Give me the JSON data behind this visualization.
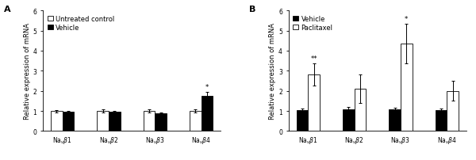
{
  "panel_A": {
    "title": "A",
    "ylabel": "Relative expression of mRNA",
    "ylim": [
      0,
      6
    ],
    "yticks": [
      0,
      1,
      2,
      3,
      4,
      5,
      6
    ],
    "groups": [
      "Na$_v$$\\beta$1",
      "Na$_v$$\\beta$2",
      "Na$_v$$\\beta$3",
      "Na$_v$$\\beta$4"
    ],
    "bar1_values": [
      1.0,
      1.0,
      1.0,
      1.0
    ],
    "bar1_errors": [
      0.06,
      0.07,
      0.07,
      0.09
    ],
    "bar1_color": "white",
    "bar1_label": "Untreated control",
    "bar2_values": [
      0.95,
      0.95,
      0.87,
      1.75
    ],
    "bar2_errors": [
      0.06,
      0.06,
      0.07,
      0.2
    ],
    "bar2_color": "black",
    "bar2_label": "Vehicle",
    "significance": [
      null,
      null,
      null,
      "*"
    ],
    "sig_on_bar2": [
      false,
      false,
      false,
      true
    ]
  },
  "panel_B": {
    "title": "B",
    "ylabel": "Relative expression of mRNA",
    "ylim": [
      0,
      6
    ],
    "yticks": [
      0,
      1,
      2,
      3,
      4,
      5,
      6
    ],
    "groups": [
      "Na$_v$$\\beta$1",
      "Na$_v$$\\beta$2",
      "Na$_v$$\\beta$3",
      "Na$_v$$\\beta$4"
    ],
    "bar1_values": [
      1.05,
      1.1,
      1.1,
      1.05
    ],
    "bar1_errors": [
      0.08,
      0.1,
      0.08,
      0.06
    ],
    "bar1_color": "black",
    "bar1_label": "Vehicle",
    "bar2_values": [
      2.8,
      2.1,
      4.35,
      2.0
    ],
    "bar2_errors": [
      0.55,
      0.7,
      1.0,
      0.5
    ],
    "bar2_color": "white",
    "bar2_label": "Paclitaxel",
    "significance": [
      "**",
      null,
      "*",
      null
    ],
    "sig_on_bar2": [
      true,
      false,
      true,
      false
    ]
  },
  "bar_width": 0.25,
  "edge_color": "black",
  "background_color": "white",
  "font_size": 6,
  "label_font_size": 6,
  "title_font_size": 8,
  "tick_font_size": 5.5
}
